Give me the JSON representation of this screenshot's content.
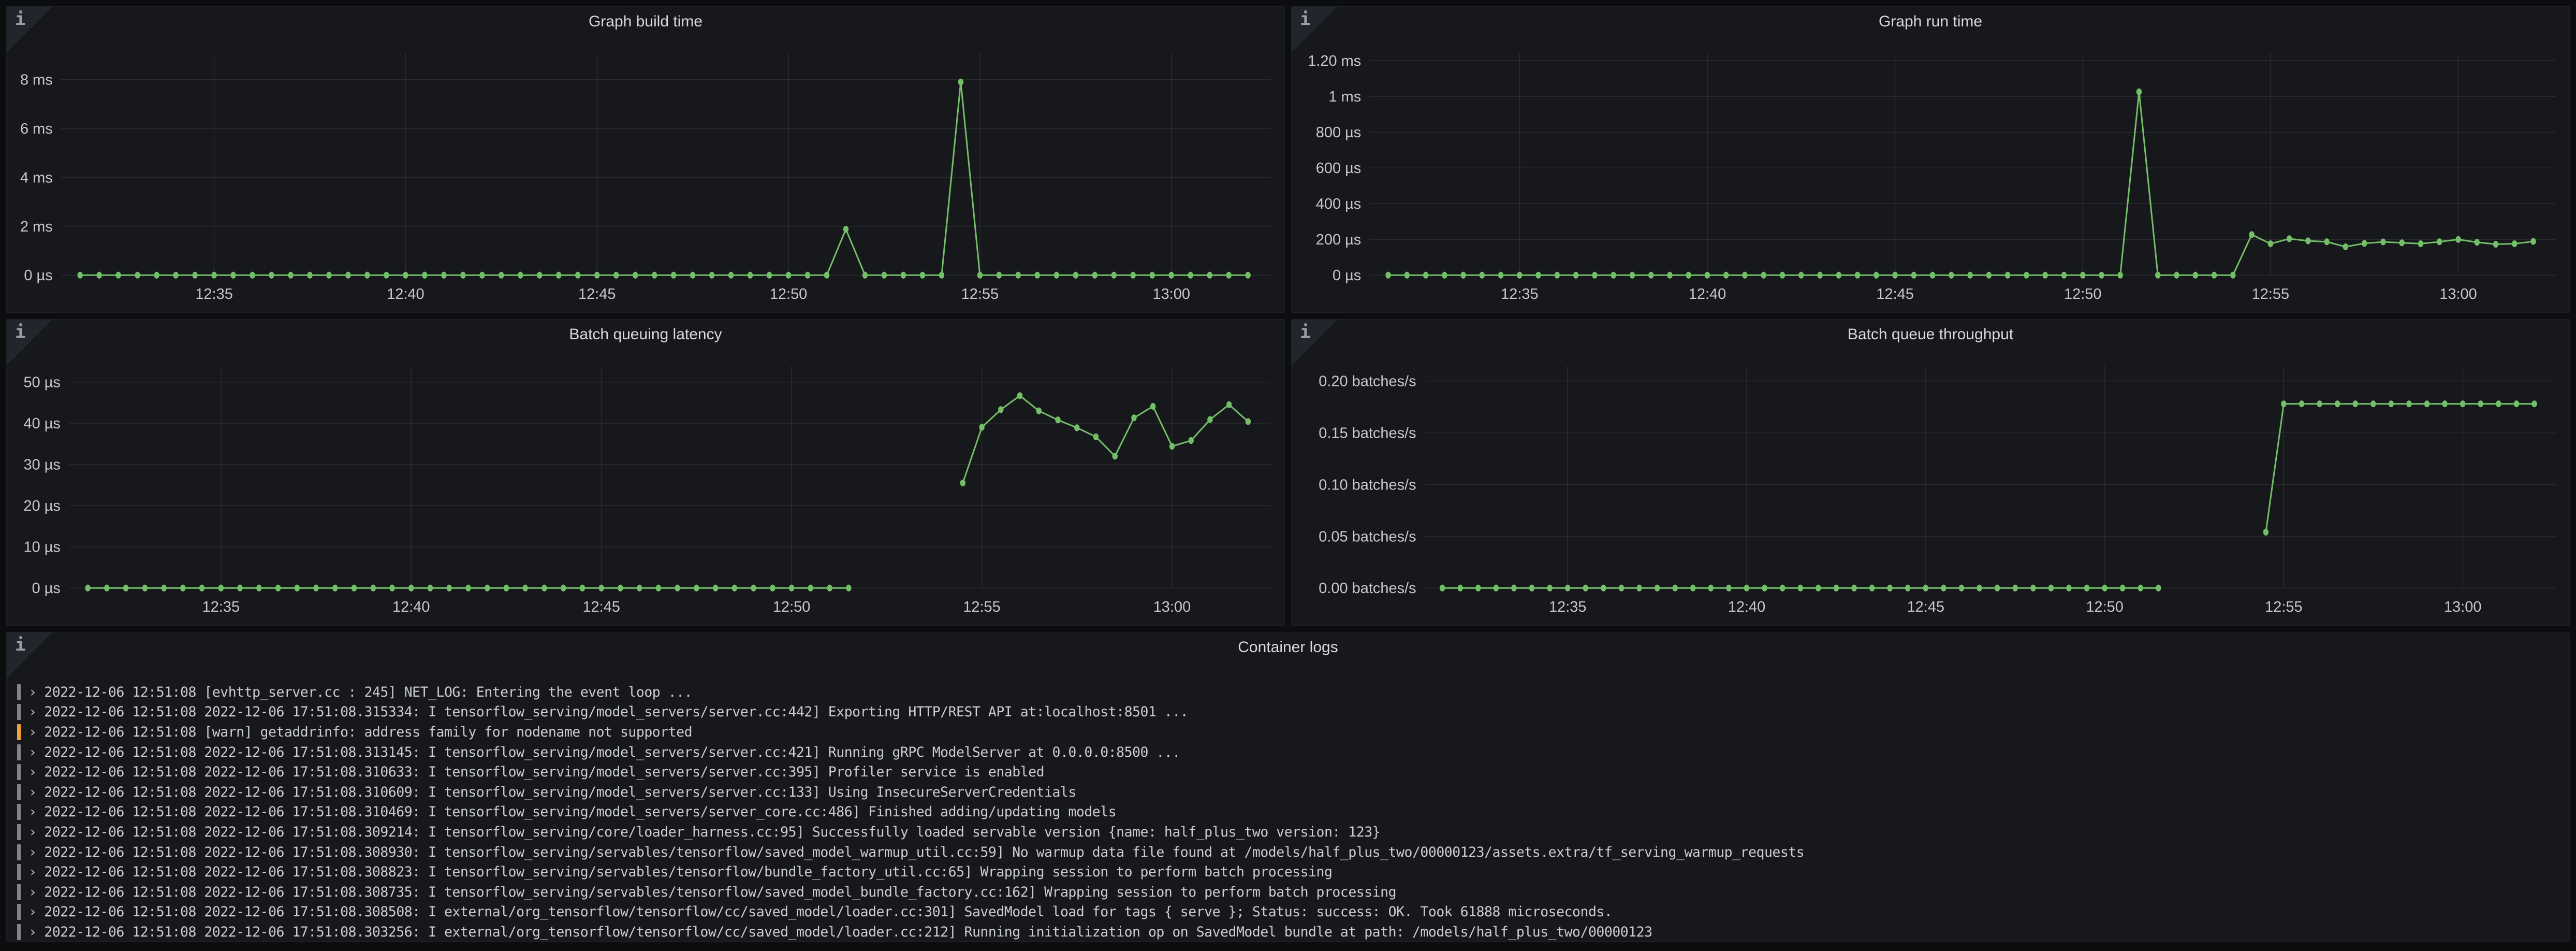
{
  "colors": {
    "page_bg": "#0c0d0f",
    "panel_bg": "#17181b",
    "panel_border": "#202226",
    "series_green": "#73BF69",
    "grid_line": "rgba(255,255,255,0.08)",
    "axis_text": "#c7c8cc",
    "title_text": "#d8d9da",
    "log_info_bar": "#82848a",
    "log_warn_bar": "#f2a33c"
  },
  "panel_info_icon": "i",
  "chart_data": [
    {
      "id": "graph-build-time",
      "type": "line",
      "title": "Graph build time",
      "unit": "ms",
      "color": "#73BF69",
      "xlim": [
        1.0,
        32.6
      ],
      "ylim": [
        0,
        9.1
      ],
      "x_ticks": [
        [
          5,
          "12:35"
        ],
        [
          10,
          "12:40"
        ],
        [
          15,
          "12:45"
        ],
        [
          20,
          "12:50"
        ],
        [
          25,
          "12:55"
        ],
        [
          30,
          "13:00"
        ]
      ],
      "y_ticks": [
        [
          0,
          "0 µs"
        ],
        [
          2,
          "2 ms"
        ],
        [
          4,
          "4 ms"
        ],
        [
          6,
          "6 ms"
        ],
        [
          8,
          "8 ms"
        ]
      ],
      "x_time_base": "12:30",
      "x": [
        1.5,
        2,
        2.5,
        3,
        3.5,
        4,
        4.5,
        5,
        5.5,
        6,
        6.5,
        7,
        7.5,
        8,
        8.5,
        9,
        9.5,
        10,
        10.5,
        11,
        11.5,
        12,
        12.5,
        13,
        13.5,
        14,
        14.5,
        15,
        15.5,
        16,
        16.5,
        17,
        17.5,
        18,
        18.5,
        19,
        19.5,
        20,
        20.5,
        21,
        21.5,
        22,
        22.5,
        23,
        23.5,
        24,
        24.5,
        25,
        25.5,
        26,
        26.5,
        27,
        27.5,
        28,
        28.5,
        29,
        29.5,
        30,
        30.5,
        31,
        31.5,
        32
      ],
      "values": [
        0,
        0,
        0,
        0,
        0,
        0,
        0,
        0,
        0,
        0,
        0,
        0,
        0,
        0,
        0,
        0,
        0,
        0,
        0,
        0,
        0,
        0,
        0,
        0,
        0,
        0,
        0,
        0,
        0,
        0,
        0,
        0,
        0,
        0,
        0,
        0,
        0,
        0,
        0,
        0,
        1.88,
        0,
        0,
        0,
        0,
        0,
        7.9,
        0,
        0,
        0,
        0,
        0,
        0,
        0,
        0,
        0,
        0,
        0,
        0,
        0,
        0,
        0
      ]
    },
    {
      "id": "graph-run-time",
      "type": "line",
      "title": "Graph run time",
      "unit": "µs",
      "color": "#73BF69",
      "xlim": [
        1.0,
        32.6
      ],
      "ylim": [
        0,
        1245
      ],
      "x_ticks": [
        [
          5,
          "12:35"
        ],
        [
          10,
          "12:40"
        ],
        [
          15,
          "12:45"
        ],
        [
          20,
          "12:50"
        ],
        [
          25,
          "12:55"
        ],
        [
          30,
          "13:00"
        ]
      ],
      "y_ticks": [
        [
          0,
          "0 µs"
        ],
        [
          200,
          "200 µs"
        ],
        [
          400,
          "400 µs"
        ],
        [
          600,
          "600 µs"
        ],
        [
          800,
          "800 µs"
        ],
        [
          1000,
          "1 ms"
        ],
        [
          1200,
          "1.20 ms"
        ]
      ],
      "x_time_base": "12:30",
      "x": [
        1.5,
        2,
        2.5,
        3,
        3.5,
        4,
        4.5,
        5,
        5.5,
        6,
        6.5,
        7,
        7.5,
        8,
        8.5,
        9,
        9.5,
        10,
        10.5,
        11,
        11.5,
        12,
        12.5,
        13,
        13.5,
        14,
        14.5,
        15,
        15.5,
        16,
        16.5,
        17,
        17.5,
        18,
        18.5,
        19,
        19.5,
        20,
        20.5,
        21,
        21.5,
        22,
        22.5,
        23,
        23.5,
        24,
        24.5,
        25,
        25.5,
        26,
        26.5,
        27,
        27.5,
        28,
        28.5,
        29,
        29.5,
        30,
        30.5,
        31,
        31.5,
        32
      ],
      "values": [
        0,
        0,
        0,
        0,
        0,
        0,
        0,
        0,
        0,
        0,
        0,
        0,
        0,
        0,
        0,
        0,
        0,
        0,
        0,
        0,
        0,
        0,
        0,
        0,
        0,
        0,
        0,
        0,
        0,
        0,
        0,
        0,
        0,
        0,
        0,
        0,
        0,
        0,
        0,
        0,
        1026,
        0,
        0,
        0,
        0,
        0,
        227,
        176,
        204,
        192,
        187,
        159,
        178,
        186,
        181,
        176,
        187,
        200,
        184,
        173,
        176,
        189
      ]
    },
    {
      "id": "batch-queuing-latency",
      "type": "line",
      "title": "Batch queuing latency",
      "unit": "µs",
      "color": "#73BF69",
      "xlim": [
        1.0,
        32.6
      ],
      "ylim": [
        0,
        54
      ],
      "x_ticks": [
        [
          5,
          "12:35"
        ],
        [
          10,
          "12:40"
        ],
        [
          15,
          "12:45"
        ],
        [
          20,
          "12:50"
        ],
        [
          25,
          "12:55"
        ],
        [
          30,
          "13:00"
        ]
      ],
      "y_ticks": [
        [
          0,
          "0 µs"
        ],
        [
          10,
          "10 µs"
        ],
        [
          20,
          "20 µs"
        ],
        [
          30,
          "30 µs"
        ],
        [
          40,
          "40 µs"
        ],
        [
          50,
          "50 µs"
        ]
      ],
      "x_time_base": "12:30",
      "x": [
        1.5,
        2,
        2.5,
        3,
        3.5,
        4,
        4.5,
        5,
        5.5,
        6,
        6.5,
        7,
        7.5,
        8,
        8.5,
        9,
        9.5,
        10,
        10.5,
        11,
        11.5,
        12,
        12.5,
        13,
        13.5,
        14,
        14.5,
        15,
        15.5,
        16,
        16.5,
        17,
        17.5,
        18,
        18.5,
        19,
        19.5,
        20,
        20.5,
        21,
        21.5,
        22,
        22.5,
        23,
        23.5,
        24,
        24.5,
        25,
        25.5,
        26,
        26.5,
        27,
        27.5,
        28,
        28.5,
        29,
        29.5,
        30,
        30.5,
        31,
        31.5,
        32
      ],
      "values": [
        0,
        0,
        0,
        0,
        0,
        0,
        0,
        0,
        0,
        0,
        0,
        0,
        0,
        0,
        0,
        0,
        0,
        0,
        0,
        0,
        0,
        0,
        0,
        0,
        0,
        0,
        0,
        0,
        0,
        0,
        0,
        0,
        0,
        0,
        0,
        0,
        0,
        0,
        0,
        0,
        0,
        null,
        null,
        null,
        null,
        null,
        25.5,
        39,
        43.3,
        46.7,
        43,
        40.8,
        38.9,
        36.7,
        32,
        41.3,
        44.1,
        34.4,
        35.8,
        40.9,
        44.5,
        40.4
      ]
    },
    {
      "id": "batch-queue-throughput",
      "type": "line",
      "title": "Batch queue throughput",
      "unit": "batches/s",
      "color": "#73BF69",
      "xlim": [
        1.0,
        32.6
      ],
      "ylim": [
        0,
        0.215
      ],
      "x_ticks": [
        [
          5,
          "12:35"
        ],
        [
          10,
          "12:40"
        ],
        [
          15,
          "12:45"
        ],
        [
          20,
          "12:50"
        ],
        [
          25,
          "12:55"
        ],
        [
          30,
          "13:00"
        ]
      ],
      "y_ticks": [
        [
          0,
          "0.00 batches/s"
        ],
        [
          0.05,
          "0.05 batches/s"
        ],
        [
          0.1,
          "0.10 batches/s"
        ],
        [
          0.15,
          "0.15 batches/s"
        ],
        [
          0.2,
          "0.20 batches/s"
        ]
      ],
      "x_time_base": "12:30",
      "x": [
        1.5,
        2,
        2.5,
        3,
        3.5,
        4,
        4.5,
        5,
        5.5,
        6,
        6.5,
        7,
        7.5,
        8,
        8.5,
        9,
        9.5,
        10,
        10.5,
        11,
        11.5,
        12,
        12.5,
        13,
        13.5,
        14,
        14.5,
        15,
        15.5,
        16,
        16.5,
        17,
        17.5,
        18,
        18.5,
        19,
        19.5,
        20,
        20.5,
        21,
        21.5,
        22,
        22.5,
        23,
        23.5,
        24,
        24.5,
        25,
        25.5,
        26,
        26.5,
        27,
        27.5,
        28,
        28.5,
        29,
        29.5,
        30,
        30.5,
        31,
        31.5,
        32
      ],
      "values": [
        0,
        0,
        0,
        0,
        0,
        0,
        0,
        0,
        0,
        0,
        0,
        0,
        0,
        0,
        0,
        0,
        0,
        0,
        0,
        0,
        0,
        0,
        0,
        0,
        0,
        0,
        0,
        0,
        0,
        0,
        0,
        0,
        0,
        0,
        0,
        0,
        0,
        0,
        0,
        0,
        0,
        null,
        null,
        null,
        null,
        null,
        0.054,
        0.178,
        0.178,
        0.178,
        0.178,
        0.178,
        0.178,
        0.178,
        0.178,
        0.178,
        0.178,
        0.178,
        0.178,
        0.178,
        0.178,
        0.178
      ]
    }
  ],
  "logs": {
    "title": "Container logs",
    "prefix": "›",
    "lines": [
      {
        "level": "info",
        "text": "2022-12-06 12:51:08 [evhttp_server.cc : 245] NET_LOG: Entering the event loop ..."
      },
      {
        "level": "info",
        "text": "2022-12-06 12:51:08 2022-12-06 17:51:08.315334: I tensorflow_serving/model_servers/server.cc:442] Exporting HTTP/REST API at:localhost:8501 ..."
      },
      {
        "level": "warn",
        "text": "2022-12-06 12:51:08 [warn] getaddrinfo: address family for nodename not supported"
      },
      {
        "level": "info",
        "text": "2022-12-06 12:51:08 2022-12-06 17:51:08.313145: I tensorflow_serving/model_servers/server.cc:421] Running gRPC ModelServer at 0.0.0.0:8500 ..."
      },
      {
        "level": "info",
        "text": "2022-12-06 12:51:08 2022-12-06 17:51:08.310633: I tensorflow_serving/model_servers/server.cc:395] Profiler service is enabled"
      },
      {
        "level": "info",
        "text": "2022-12-06 12:51:08 2022-12-06 17:51:08.310609: I tensorflow_serving/model_servers/server.cc:133] Using InsecureServerCredentials"
      },
      {
        "level": "info",
        "text": "2022-12-06 12:51:08 2022-12-06 17:51:08.310469: I tensorflow_serving/model_servers/server_core.cc:486] Finished adding/updating models"
      },
      {
        "level": "info",
        "text": "2022-12-06 12:51:08 2022-12-06 17:51:08.309214: I tensorflow_serving/core/loader_harness.cc:95] Successfully loaded servable version {name: half_plus_two version: 123}"
      },
      {
        "level": "info",
        "text": "2022-12-06 12:51:08 2022-12-06 17:51:08.308930: I tensorflow_serving/servables/tensorflow/saved_model_warmup_util.cc:59] No warmup data file found at /models/half_plus_two/00000123/assets.extra/tf_serving_warmup_requests"
      },
      {
        "level": "info",
        "text": "2022-12-06 12:51:08 2022-12-06 17:51:08.308823: I tensorflow_serving/servables/tensorflow/bundle_factory_util.cc:65] Wrapping session to perform batch processing"
      },
      {
        "level": "info",
        "text": "2022-12-06 12:51:08 2022-12-06 17:51:08.308735: I tensorflow_serving/servables/tensorflow/saved_model_bundle_factory.cc:162] Wrapping session to perform batch processing"
      },
      {
        "level": "info",
        "text": "2022-12-06 12:51:08 2022-12-06 17:51:08.308508: I external/org_tensorflow/tensorflow/cc/saved_model/loader.cc:301] SavedModel load for tags { serve }; Status: success: OK. Took 61888 microseconds."
      },
      {
        "level": "info",
        "text": "2022-12-06 12:51:08 2022-12-06 17:51:08.303256: I external/org_tensorflow/tensorflow/cc/saved_model/loader.cc:212] Running initialization op on SavedModel bundle at path: /models/half_plus_two/00000123"
      }
    ]
  }
}
